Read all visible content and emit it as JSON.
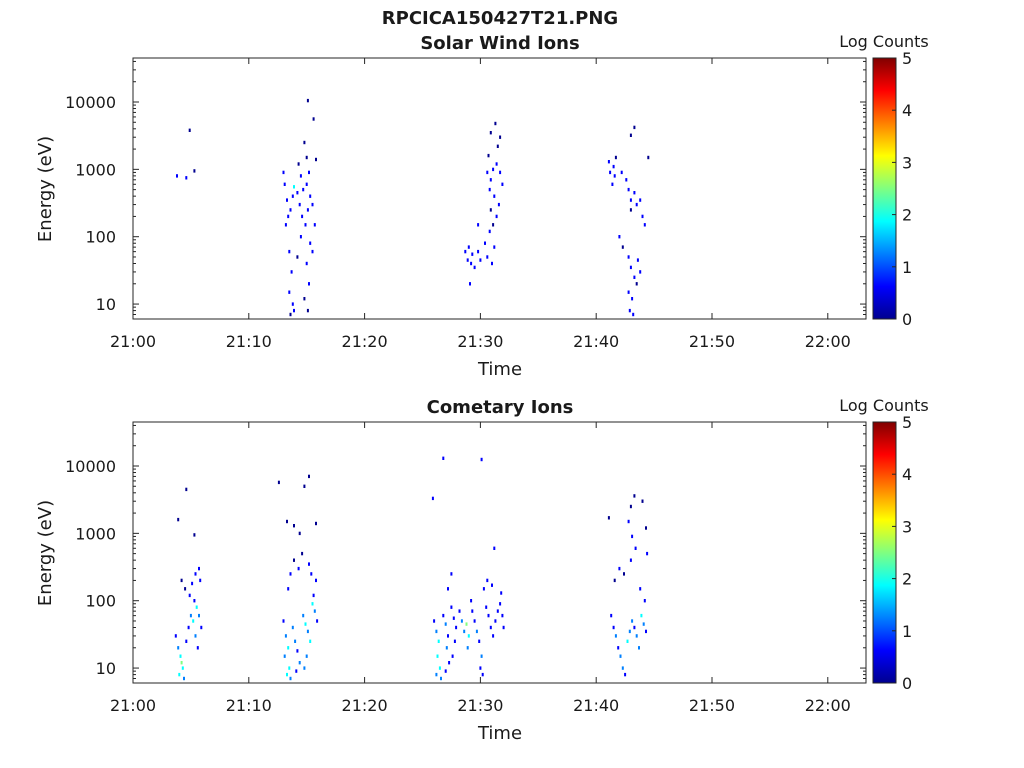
{
  "figure_title": "RPCICA150427T21.PNG",
  "colormap": [
    "#00008f",
    "#0000ff",
    "#0080ff",
    "#00ffff",
    "#80ff80",
    "#ffff00",
    "#ff8000",
    "#ff0000",
    "#800000"
  ],
  "chart_data": [
    {
      "type": "heatmap",
      "title": "Solar Wind Ions",
      "xlabel": "Time",
      "ylabel": "Energy (eV)",
      "x_ticks": [
        "21:00",
        "21:10",
        "21:20",
        "21:30",
        "21:40",
        "21:50",
        "22:00"
      ],
      "x_tick_minutes": [
        0,
        10,
        20,
        30,
        40,
        50,
        60
      ],
      "xlim_minutes": [
        0,
        63.3
      ],
      "y_scale": "log",
      "y_ticks": [
        "10",
        "100",
        "1000",
        "10000"
      ],
      "y_tick_values": [
        10,
        100,
        1000,
        10000
      ],
      "ylim": [
        6,
        45000
      ],
      "colorbar": {
        "label": "Log Counts",
        "ticks": [
          "0",
          "1",
          "2",
          "3",
          "4",
          "5"
        ],
        "range": [
          0,
          5
        ]
      },
      "grid": false,
      "cells": [
        [
          4.9,
          3800,
          0.3
        ],
        [
          3.8,
          800,
          0.4
        ],
        [
          4.6,
          750,
          0.4
        ],
        [
          5.3,
          950,
          0.3
        ],
        [
          13.0,
          900,
          0.4
        ],
        [
          13.1,
          600,
          0.5
        ],
        [
          13.3,
          350,
          0.6
        ],
        [
          13.4,
          200,
          0.5
        ],
        [
          13.2,
          150,
          0.4
        ],
        [
          13.6,
          250,
          0.4
        ],
        [
          13.8,
          400,
          0.5
        ],
        [
          13.5,
          60,
          0.4
        ],
        [
          13.7,
          30,
          0.5
        ],
        [
          13.5,
          15,
          0.4
        ],
        [
          13.8,
          10,
          0.5
        ],
        [
          13.6,
          7,
          0.3
        ],
        [
          13.9,
          8,
          0.4
        ],
        [
          14.3,
          1200,
          0.3
        ],
        [
          14.5,
          800,
          0.4
        ],
        [
          14.7,
          500,
          0.5
        ],
        [
          14.4,
          300,
          0.6
        ],
        [
          14.6,
          200,
          0.4
        ],
        [
          14.9,
          150,
          0.5
        ],
        [
          14.5,
          100,
          0.4
        ],
        [
          14.2,
          50,
          0.3
        ],
        [
          14.8,
          2500,
          0.3
        ],
        [
          15.0,
          1500,
          0.3
        ],
        [
          15.2,
          900,
          0.4
        ],
        [
          15.0,
          600,
          0.5
        ],
        [
          15.3,
          400,
          0.6
        ],
        [
          15.1,
          250,
          0.5
        ],
        [
          15.3,
          80,
          0.4
        ],
        [
          15.0,
          40,
          0.4
        ],
        [
          15.2,
          20,
          0.4
        ],
        [
          14.8,
          12,
          0.3
        ],
        [
          15.1,
          8,
          0.3
        ],
        [
          15.5,
          300,
          0.4
        ],
        [
          15.7,
          150,
          0.4
        ],
        [
          15.5,
          60,
          0.5
        ],
        [
          15.8,
          1400,
          0.3
        ],
        [
          15.6,
          5600,
          0.3
        ],
        [
          15.1,
          10500,
          0.3
        ],
        [
          13.9,
          550,
          1.6
        ],
        [
          14.2,
          450,
          0.8
        ],
        [
          28.7,
          60,
          0.6
        ],
        [
          28.9,
          45,
          0.5
        ],
        [
          29.2,
          40,
          0.5
        ],
        [
          29.0,
          70,
          0.6
        ],
        [
          29.3,
          55,
          0.5
        ],
        [
          29.5,
          35,
          0.4
        ],
        [
          29.1,
          20,
          0.4
        ],
        [
          29.8,
          60,
          0.5
        ],
        [
          30.0,
          45,
          0.5
        ],
        [
          29.8,
          150,
          0.4
        ],
        [
          30.6,
          900,
          0.5
        ],
        [
          30.9,
          700,
          0.6
        ],
        [
          31.1,
          1000,
          0.5
        ],
        [
          31.4,
          1200,
          0.5
        ],
        [
          31.7,
          900,
          0.6
        ],
        [
          31.9,
          600,
          0.4
        ],
        [
          30.8,
          500,
          0.5
        ],
        [
          31.2,
          400,
          0.4
        ],
        [
          31.6,
          300,
          0.5
        ],
        [
          30.9,
          250,
          0.3
        ],
        [
          31.4,
          200,
          0.4
        ],
        [
          31.1,
          150,
          0.3
        ],
        [
          30.7,
          1600,
          0.3
        ],
        [
          31.5,
          2200,
          0.3
        ],
        [
          30.9,
          3500,
          0.3
        ],
        [
          31.3,
          4800,
          0.3
        ],
        [
          31.7,
          3000,
          0.3
        ],
        [
          30.4,
          80,
          0.4
        ],
        [
          30.6,
          50,
          0.4
        ],
        [
          31.0,
          40,
          0.4
        ],
        [
          31.2,
          70,
          0.4
        ],
        [
          30.8,
          120,
          0.4
        ],
        [
          41.1,
          1300,
          0.5
        ],
        [
          41.2,
          900,
          0.6
        ],
        [
          41.5,
          1100,
          0.5
        ],
        [
          41.6,
          800,
          0.5
        ],
        [
          41.4,
          600,
          0.4
        ],
        [
          41.7,
          1500,
          0.3
        ],
        [
          42.2,
          900,
          0.4
        ],
        [
          42.6,
          700,
          0.5
        ],
        [
          42.8,
          500,
          0.4
        ],
        [
          43.0,
          350,
          0.5
        ],
        [
          43.3,
          450,
          0.4
        ],
        [
          43.5,
          300,
          0.4
        ],
        [
          43.8,
          350,
          0.5
        ],
        [
          44.0,
          200,
          0.4
        ],
        [
          44.2,
          150,
          0.4
        ],
        [
          43.0,
          250,
          0.3
        ],
        [
          42.0,
          100,
          0.4
        ],
        [
          42.3,
          70,
          0.3
        ],
        [
          42.8,
          50,
          0.4
        ],
        [
          43.0,
          35,
          0.5
        ],
        [
          43.3,
          25,
          0.4
        ],
        [
          42.8,
          15,
          0.5
        ],
        [
          43.1,
          12,
          0.4
        ],
        [
          42.9,
          8,
          0.5
        ],
        [
          43.2,
          7,
          0.4
        ],
        [
          43.6,
          45,
          0.4
        ],
        [
          43.8,
          30,
          0.4
        ],
        [
          43.5,
          20,
          0.3
        ],
        [
          43.0,
          3200,
          0.3
        ],
        [
          43.3,
          4200,
          0.3
        ],
        [
          44.5,
          1500,
          0.3
        ]
      ]
    },
    {
      "type": "heatmap",
      "title": "Cometary Ions",
      "xlabel": "Time",
      "ylabel": "Energy (eV)",
      "x_ticks": [
        "21:00",
        "21:10",
        "21:20",
        "21:30",
        "21:40",
        "21:50",
        "22:00"
      ],
      "x_tick_minutes": [
        0,
        10,
        20,
        30,
        40,
        50,
        60
      ],
      "xlim_minutes": [
        0,
        63.3
      ],
      "y_scale": "log",
      "y_ticks": [
        "10",
        "100",
        "1000",
        "10000"
      ],
      "y_tick_values": [
        10,
        100,
        1000,
        10000
      ],
      "ylim": [
        6,
        45000
      ],
      "colorbar": {
        "label": "Log Counts",
        "ticks": [
          "0",
          "1",
          "2",
          "3",
          "4",
          "5"
        ],
        "range": [
          0,
          5
        ]
      },
      "grid": false,
      "cells": [
        [
          3.7,
          30,
          0.6
        ],
        [
          3.9,
          20,
          1.0
        ],
        [
          4.1,
          15,
          1.6
        ],
        [
          4.3,
          10,
          2.0
        ],
        [
          4.0,
          8,
          1.8
        ],
        [
          4.4,
          7,
          1.4
        ],
        [
          4.2,
          12,
          2.2
        ],
        [
          4.6,
          25,
          0.8
        ],
        [
          4.8,
          40,
          0.7
        ],
        [
          5.0,
          60,
          1.2
        ],
        [
          5.2,
          50,
          1.6
        ],
        [
          5.4,
          30,
          1.0
        ],
        [
          5.6,
          20,
          0.8
        ],
        [
          5.5,
          80,
          1.8
        ],
        [
          5.7,
          60,
          1.4
        ],
        [
          5.9,
          40,
          0.9
        ],
        [
          5.3,
          100,
          0.6
        ],
        [
          4.9,
          120,
          0.5
        ],
        [
          5.1,
          180,
          0.4
        ],
        [
          5.4,
          250,
          0.4
        ],
        [
          5.7,
          300,
          0.4
        ],
        [
          5.8,
          200,
          0.5
        ],
        [
          4.5,
          150,
          0.3
        ],
        [
          4.2,
          200,
          0.3
        ],
        [
          3.9,
          1600,
          0.3
        ],
        [
          4.6,
          4500,
          0.3
        ],
        [
          5.3,
          950,
          0.3
        ],
        [
          13.0,
          50,
          0.8
        ],
        [
          13.2,
          30,
          1.4
        ],
        [
          13.4,
          20,
          1.8
        ],
        [
          13.1,
          15,
          1.0
        ],
        [
          13.5,
          10,
          1.6
        ],
        [
          13.3,
          8,
          2.0
        ],
        [
          13.6,
          7,
          1.2
        ],
        [
          13.8,
          40,
          1.0
        ],
        [
          14.0,
          25,
          1.5
        ],
        [
          14.2,
          18,
          0.9
        ],
        [
          14.4,
          12,
          1.3
        ],
        [
          14.1,
          9,
          0.8
        ],
        [
          14.7,
          60,
          1.5
        ],
        [
          14.9,
          45,
          1.9
        ],
        [
          15.1,
          35,
          1.2
        ],
        [
          15.3,
          25,
          1.6
        ],
        [
          15.0,
          15,
          1.1
        ],
        [
          14.8,
          10,
          1.4
        ],
        [
          15.5,
          90,
          1.7
        ],
        [
          15.7,
          70,
          1.3
        ],
        [
          15.9,
          50,
          0.8
        ],
        [
          15.6,
          120,
          0.6
        ],
        [
          15.8,
          200,
          0.5
        ],
        [
          13.4,
          150,
          0.4
        ],
        [
          13.6,
          250,
          0.4
        ],
        [
          13.9,
          400,
          0.3
        ],
        [
          14.3,
          300,
          0.4
        ],
        [
          14.6,
          500,
          0.3
        ],
        [
          15.2,
          350,
          0.4
        ],
        [
          15.4,
          250,
          0.4
        ],
        [
          12.6,
          5700,
          0.3
        ],
        [
          14.8,
          5000,
          0.3
        ],
        [
          15.2,
          7000,
          0.3
        ],
        [
          13.3,
          1500,
          0.3
        ],
        [
          13.9,
          1300,
          0.3
        ],
        [
          15.8,
          1400,
          0.3
        ],
        [
          14.4,
          1000,
          0.3
        ],
        [
          26.0,
          50,
          0.6
        ],
        [
          26.2,
          35,
          1.0
        ],
        [
          26.4,
          25,
          1.6
        ],
        [
          26.3,
          15,
          2.0
        ],
        [
          26.5,
          10,
          1.8
        ],
        [
          26.2,
          8,
          1.4
        ],
        [
          26.6,
          7,
          1.0
        ],
        [
          26.8,
          60,
          0.7
        ],
        [
          27.0,
          45,
          1.2
        ],
        [
          27.2,
          30,
          0.9
        ],
        [
          27.1,
          20,
          1.3
        ],
        [
          27.3,
          12,
          0.8
        ],
        [
          27.0,
          9,
          0.6
        ],
        [
          27.5,
          80,
          0.5
        ],
        [
          27.7,
          55,
          0.7
        ],
        [
          27.9,
          40,
          0.6
        ],
        [
          27.8,
          25,
          0.8
        ],
        [
          27.6,
          15,
          0.5
        ],
        [
          28.2,
          70,
          0.5
        ],
        [
          28.4,
          50,
          1.0
        ],
        [
          28.6,
          35,
          1.4
        ],
        [
          28.8,
          45,
          2.2
        ],
        [
          29.0,
          30,
          1.8
        ],
        [
          28.9,
          20,
          1.2
        ],
        [
          29.3,
          70,
          0.8
        ],
        [
          29.5,
          50,
          0.6
        ],
        [
          29.7,
          35,
          1.0
        ],
        [
          29.9,
          25,
          0.7
        ],
        [
          30.1,
          15,
          1.2
        ],
        [
          30.0,
          10,
          0.9
        ],
        [
          30.2,
          8,
          0.7
        ],
        [
          30.5,
          80,
          0.6
        ],
        [
          30.7,
          60,
          0.8
        ],
        [
          30.9,
          40,
          0.6
        ],
        [
          31.1,
          30,
          0.5
        ],
        [
          31.3,
          50,
          0.6
        ],
        [
          31.5,
          70,
          0.5
        ],
        [
          31.7,
          90,
          0.7
        ],
        [
          31.9,
          60,
          0.6
        ],
        [
          32.0,
          40,
          0.5
        ],
        [
          27.2,
          150,
          0.4
        ],
        [
          27.5,
          250,
          0.4
        ],
        [
          29.2,
          100,
          0.5
        ],
        [
          30.3,
          150,
          0.4
        ],
        [
          30.6,
          200,
          0.4
        ],
        [
          31.0,
          170,
          0.4
        ],
        [
          31.8,
          130,
          0.4
        ],
        [
          26.8,
          13000,
          0.4
        ],
        [
          30.1,
          12500,
          0.5
        ],
        [
          25.9,
          3300,
          0.4
        ],
        [
          31.2,
          600,
          0.4
        ],
        [
          41.3,
          60,
          0.5
        ],
        [
          41.5,
          40,
          0.8
        ],
        [
          41.7,
          30,
          1.1
        ],
        [
          41.9,
          20,
          0.9
        ],
        [
          42.1,
          15,
          1.4
        ],
        [
          42.3,
          10,
          1.0
        ],
        [
          42.5,
          8,
          0.7
        ],
        [
          42.7,
          25,
          1.8
        ],
        [
          42.9,
          35,
          1.5
        ],
        [
          43.1,
          50,
          1.2
        ],
        [
          43.3,
          40,
          0.9
        ],
        [
          43.5,
          30,
          1.3
        ],
        [
          43.7,
          20,
          1.0
        ],
        [
          43.9,
          60,
          1.6
        ],
        [
          44.1,
          45,
          1.2
        ],
        [
          44.3,
          35,
          0.8
        ],
        [
          44.2,
          100,
          0.5
        ],
        [
          43.8,
          150,
          0.4
        ],
        [
          41.6,
          200,
          0.3
        ],
        [
          42.0,
          300,
          0.4
        ],
        [
          42.4,
          250,
          0.3
        ],
        [
          43.0,
          400,
          0.4
        ],
        [
          43.4,
          600,
          0.5
        ],
        [
          43.1,
          900,
          0.4
        ],
        [
          42.8,
          1500,
          0.4
        ],
        [
          43.0,
          2500,
          0.3
        ],
        [
          43.3,
          3600,
          0.3
        ],
        [
          41.1,
          1700,
          0.3
        ],
        [
          44.3,
          1200,
          0.3
        ],
        [
          44.0,
          3000,
          0.3
        ],
        [
          44.4,
          500,
          0.4
        ]
      ]
    }
  ]
}
